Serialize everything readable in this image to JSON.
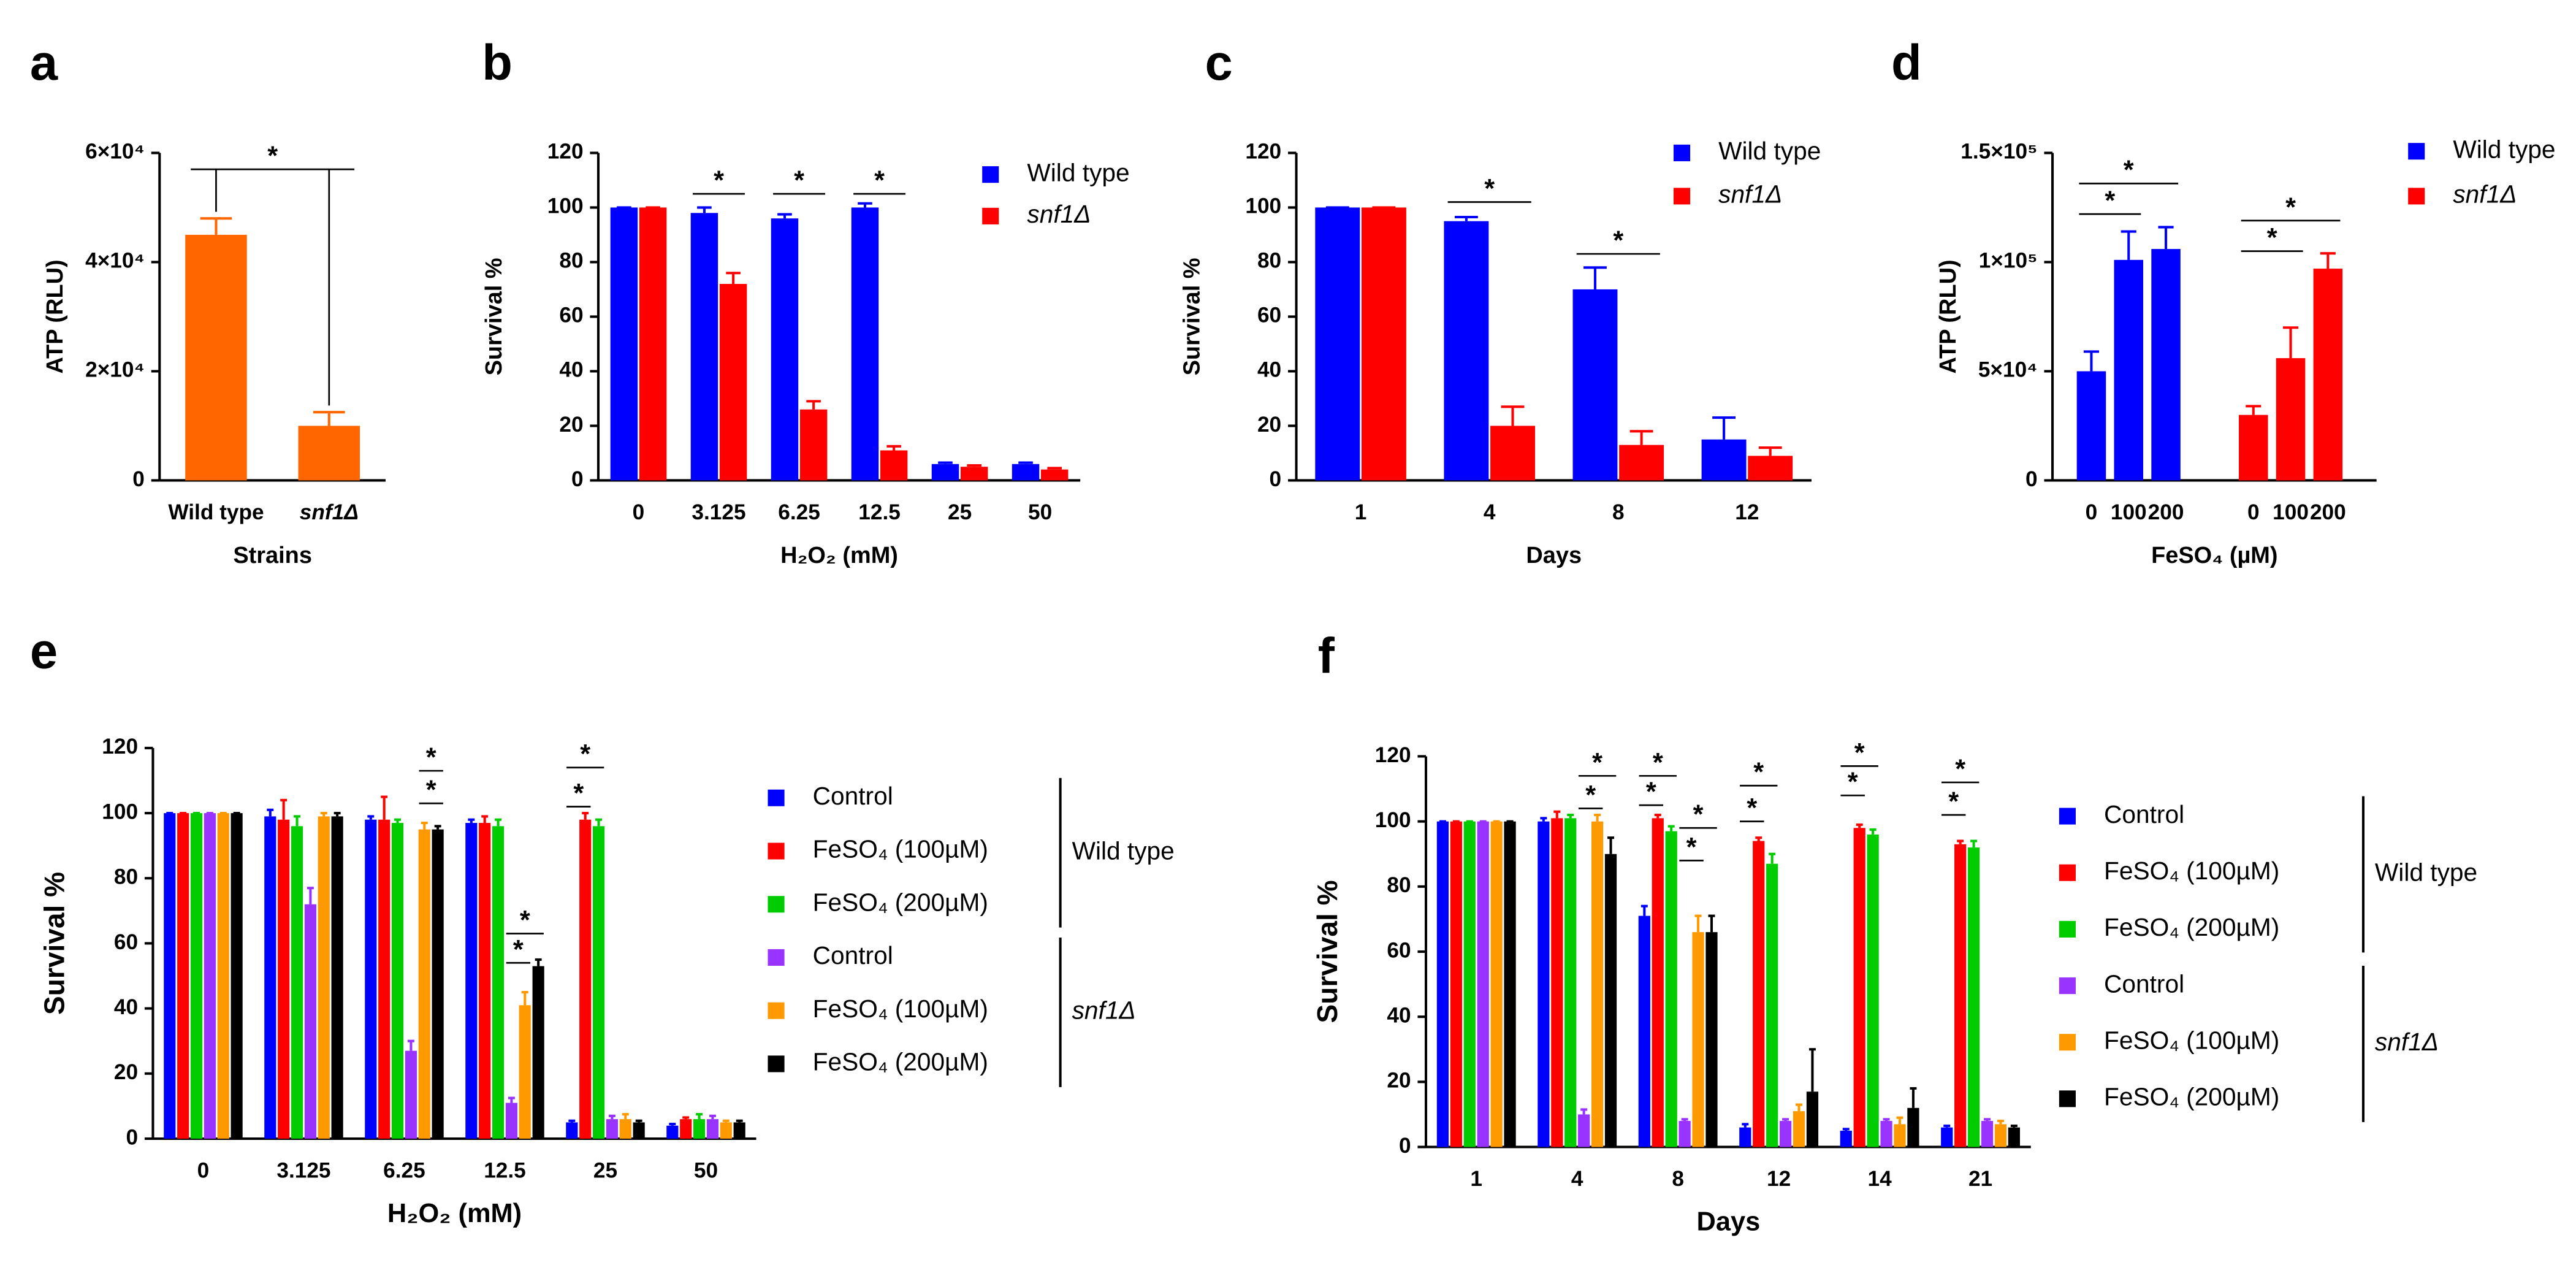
{
  "chart_data": [
    {
      "type": "bar",
      "panel": "a",
      "x_label": "Strains",
      "y_label": "ATP (RLU)",
      "categories": [
        "Wild type",
        "snf1Δ"
      ],
      "values": [
        45000,
        10000
      ],
      "errors": [
        3000,
        2500
      ],
      "color": "#ff6600",
      "ylim": [
        0,
        60000
      ],
      "yticks": [
        0,
        {
          "value": 20000,
          "label": "2×10⁴"
        },
        {
          "value": 40000,
          "label": "4×10⁴"
        },
        {
          "value": 60000,
          "label": "6×10⁴"
        }
      ],
      "annotations": [
        "*"
      ]
    },
    {
      "type": "bar",
      "panel": "b",
      "x_label": "H₂O₂ (mM)",
      "y_label": "Survival %",
      "categories": [
        "0",
        "3.125",
        "6.25",
        "12.5",
        "25",
        "50"
      ],
      "series": [
        {
          "name": "Wild type",
          "color": "#0000ff",
          "values": [
            100,
            98,
            96,
            100,
            6,
            6
          ],
          "errors": [
            0,
            2,
            1.5,
            1.5,
            0.5,
            0.5
          ]
        },
        {
          "name": "snf1Δ",
          "color": "#ff0000",
          "values": [
            100,
            72,
            26,
            11,
            5,
            4
          ],
          "errors": [
            0,
            4,
            3,
            1.5,
            0.5,
            0.5
          ]
        }
      ],
      "ylim": [
        0,
        120
      ],
      "yticks": [
        0,
        20,
        40,
        60,
        80,
        100,
        120
      ],
      "annotations": [
        "*",
        "*",
        "*"
      ]
    },
    {
      "type": "bar",
      "panel": "c",
      "x_label": "Days",
      "y_label": "Survival %",
      "categories": [
        "1",
        "4",
        "8",
        "12"
      ],
      "series": [
        {
          "name": "Wild type",
          "color": "#0000ff",
          "values": [
            100,
            95,
            70,
            15
          ],
          "errors": [
            0,
            1.5,
            8,
            8
          ]
        },
        {
          "name": "snf1Δ",
          "color": "#ff0000",
          "values": [
            100,
            20,
            13,
            9
          ],
          "errors": [
            0,
            7,
            5,
            3
          ]
        }
      ],
      "ylim": [
        0,
        120
      ],
      "yticks": [
        0,
        20,
        40,
        60,
        80,
        100,
        120
      ],
      "annotations": [
        "*",
        "*"
      ]
    },
    {
      "type": "bar",
      "panel": "d",
      "x_label": "FeSO₄ (µM)",
      "y_label": "ATP (RLU)",
      "series_as_groups": true,
      "categories": [
        "0",
        "100",
        "200"
      ],
      "series": [
        {
          "name": "Wild type",
          "color": "#0000ff",
          "values": [
            50000,
            101000,
            106000
          ],
          "errors": [
            9000,
            13000,
            10000
          ]
        },
        {
          "name": "snf1Δ",
          "color": "#ff0000",
          "values": [
            30000,
            56000,
            97000
          ],
          "errors": [
            4000,
            14000,
            7000
          ]
        }
      ],
      "ylim": [
        0,
        150000
      ],
      "yticks": [
        0,
        {
          "value": 50000,
          "label": "5×10⁴"
        },
        {
          "value": 100000,
          "label": "1×10⁵"
        },
        {
          "value": 150000,
          "label": "1.5×10⁵"
        }
      ],
      "annotations": [
        "*",
        "*",
        "*",
        "*"
      ]
    },
    {
      "type": "bar",
      "panel": "e",
      "x_label": "H₂O₂ (mM)",
      "y_label": "Survival %",
      "categories": [
        "0",
        "3.125",
        "6.25",
        "12.5",
        "25",
        "50"
      ],
      "legend_groups": [
        "Wild type",
        "snf1Δ"
      ],
      "series": [
        {
          "name": "Control",
          "color": "#0000ff",
          "values": [
            100,
            99,
            98,
            97,
            5,
            4
          ],
          "errors": [
            0,
            2,
            1,
            1,
            0.5,
            0.5
          ]
        },
        {
          "name": "FeSO₄ (100µM)",
          "color": "#ff0000",
          "values": [
            100,
            98,
            98,
            97,
            98,
            6
          ],
          "errors": [
            0,
            6,
            7,
            2,
            2,
            0.5
          ]
        },
        {
          "name": "FeSO₄ (200µM)",
          "color": "#00cc00",
          "values": [
            100,
            96,
            97,
            96,
            96,
            6
          ],
          "errors": [
            0,
            3,
            1,
            2,
            2,
            1.5
          ]
        },
        {
          "name": "Control",
          "color": "#9933ff",
          "values": [
            100,
            72,
            27,
            11,
            6,
            6
          ],
          "errors": [
            0,
            5,
            3,
            1.5,
            1,
            1
          ]
        },
        {
          "name": "FeSO₄ (100µM)",
          "color": "#ff9900",
          "values": [
            100,
            99,
            95,
            41,
            6,
            5
          ],
          "errors": [
            0,
            1,
            2,
            4,
            1.5,
            0.5
          ]
        },
        {
          "name": "FeSO₄ (200µM)",
          "color": "#000000",
          "values": [
            100,
            99,
            95,
            53,
            5,
            5
          ],
          "errors": [
            0,
            1,
            1,
            2,
            0.5,
            0.5
          ]
        }
      ],
      "ylim": [
        0,
        120
      ],
      "yticks": [
        0,
        20,
        40,
        60,
        80,
        100,
        120
      ],
      "annotations": [
        "*",
        "*",
        "*",
        "*",
        "*",
        "*"
      ]
    },
    {
      "type": "bar",
      "panel": "f",
      "x_label": "Days",
      "y_label": "Survival %",
      "categories": [
        "1",
        "4",
        "8",
        "12",
        "14",
        "21"
      ],
      "legend_groups": [
        "Wild type",
        "snf1Δ"
      ],
      "series": [
        {
          "name": "Control",
          "color": "#0000ff",
          "values": [
            100,
            100,
            71,
            6,
            5,
            6
          ],
          "errors": [
            0,
            1,
            3,
            1,
            0.5,
            0.5
          ]
        },
        {
          "name": "FeSO₄ (100µM)",
          "color": "#ff0000",
          "values": [
            100,
            101,
            101,
            94,
            98,
            93
          ],
          "errors": [
            0,
            2,
            1,
            1,
            1,
            1
          ]
        },
        {
          "name": "FeSO₄ (200µM)",
          "color": "#00cc00",
          "values": [
            100,
            101,
            97,
            87,
            96,
            92
          ],
          "errors": [
            0,
            1,
            1.5,
            3,
            1.5,
            2
          ]
        },
        {
          "name": "Control",
          "color": "#9933ff",
          "values": [
            100,
            10,
            8,
            8,
            8,
            8
          ],
          "errors": [
            0,
            1.5,
            0.5,
            0.5,
            0.5,
            0.5
          ]
        },
        {
          "name": "FeSO₄ (100µM)",
          "color": "#ff9900",
          "values": [
            100,
            100,
            66,
            11,
            7,
            7
          ],
          "errors": [
            0,
            2,
            5,
            2,
            2,
            1
          ]
        },
        {
          "name": "FeSO₄ (200µM)",
          "color": "#000000",
          "values": [
            100,
            90,
            66,
            17,
            12,
            6
          ],
          "errors": [
            0,
            5,
            5,
            13,
            6,
            0.5
          ]
        }
      ],
      "ylim": [
        0,
        120
      ],
      "yticks": [
        0,
        20,
        40,
        60,
        80,
        100,
        120
      ],
      "annotations": [
        "*",
        "*",
        "*",
        "*",
        "*",
        "*",
        "*",
        "*",
        "*",
        "*",
        "*",
        "*"
      ]
    }
  ]
}
